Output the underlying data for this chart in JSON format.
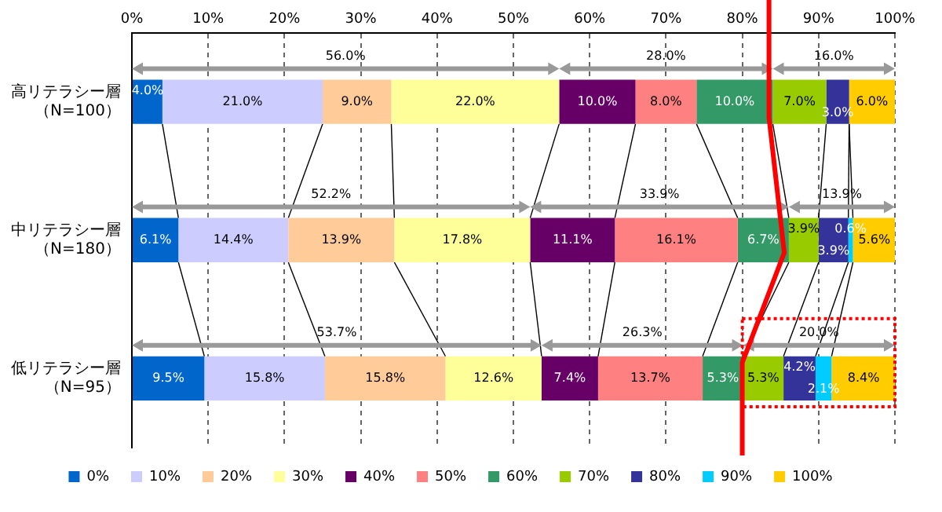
{
  "chart_data": {
    "type": "bar",
    "orientation": "horizontal",
    "stacked": true,
    "categories": [
      "高リテラシー層（N=100）",
      "中リテラシー層（N=180）",
      "低リテラシー層（N=95）"
    ],
    "series": [
      {
        "name": "0%",
        "color": "#0066cc",
        "values": [
          4.0,
          6.1,
          9.5
        ],
        "value_labels": [
          "4.0%",
          "6.1%",
          "9.5%"
        ]
      },
      {
        "name": "10%",
        "color": "#ccccff",
        "values": [
          21.0,
          14.4,
          15.8
        ],
        "value_labels": [
          "21.0%",
          "14.4%",
          "15.8%"
        ]
      },
      {
        "name": "20%",
        "color": "#ffcc99",
        "values": [
          9.0,
          13.9,
          15.8
        ],
        "value_labels": [
          "9.0%",
          "13.9%",
          "15.8%"
        ]
      },
      {
        "name": "30%",
        "color": "#ffff99",
        "values": [
          22.0,
          17.8,
          12.6
        ],
        "value_labels": [
          "22.0%",
          "17.8%",
          "12.6%"
        ]
      },
      {
        "name": "40%",
        "color": "#660066",
        "values": [
          10.0,
          11.1,
          7.4
        ],
        "value_labels": [
          "10.0%",
          "11.1%",
          "7.4%"
        ]
      },
      {
        "name": "50%",
        "color": "#ff8080",
        "values": [
          8.0,
          16.1,
          13.7
        ],
        "value_labels": [
          "8.0%",
          "16.1%",
          "13.7%"
        ]
      },
      {
        "name": "60%",
        "color": "#339966",
        "values": [
          10.0,
          6.7,
          5.3
        ],
        "value_labels": [
          "10.0%",
          "6.7%",
          "5.3%"
        ]
      },
      {
        "name": "70%",
        "color": "#99cc00",
        "values": [
          7.0,
          3.9,
          5.3
        ],
        "value_labels": [
          "7.0%",
          "3.9%",
          "5.3%"
        ]
      },
      {
        "name": "80%",
        "color": "#333399",
        "values": [
          3.0,
          3.9,
          4.2
        ],
        "value_labels": [
          "3.0%",
          "3.9%",
          "4.2%"
        ]
      },
      {
        "name": "90%",
        "color": "#00ccff",
        "values": [
          0,
          0.6,
          2.1
        ],
        "value_labels": [
          null,
          "0.6%",
          "2.1%"
        ]
      },
      {
        "name": "100%",
        "color": "#ffcc00",
        "values": [
          6.0,
          5.6,
          8.4
        ],
        "value_labels": [
          "6.0%",
          "5.6%",
          "8.4%"
        ]
      }
    ],
    "xlim": [
      0,
      100
    ],
    "xticks": [
      {
        "value": 0,
        "label": "0%"
      },
      {
        "value": 10,
        "label": "10%"
      },
      {
        "value": 20,
        "label": "20%"
      },
      {
        "value": 30,
        "label": "30%"
      },
      {
        "value": 40,
        "label": "40%"
      },
      {
        "value": 50,
        "label": "50%"
      },
      {
        "value": 60,
        "label": "60%"
      },
      {
        "value": 70,
        "label": "70%"
      },
      {
        "value": 80,
        "label": "80%"
      },
      {
        "value": 90,
        "label": "90%"
      },
      {
        "value": 100,
        "label": "100%"
      }
    ],
    "annotations": [
      "56.0%",
      "28.0%",
      "16.0%",
      "52.2%",
      "33.9%",
      "13.9%",
      "53.7%",
      "26.3%",
      "20.0%"
    ],
    "grid": "x",
    "legend": "bottom"
  }
}
